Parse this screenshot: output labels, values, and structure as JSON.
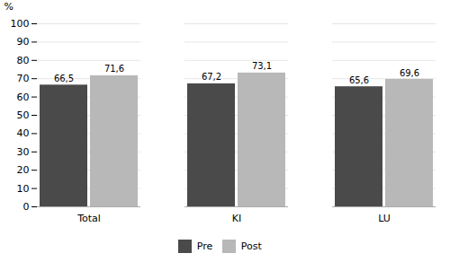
{
  "chart_data": {
    "type": "bar",
    "categories": [
      "Total",
      "KI",
      "LU"
    ],
    "series": [
      {
        "name": "Pre",
        "color": "#4a4a4a",
        "values": [
          66.5,
          67.2,
          65.6
        ],
        "value_labels": [
          "66,5",
          "67,2",
          "65,6"
        ]
      },
      {
        "name": "Post",
        "color": "#b8b8b8",
        "values": [
          71.6,
          73.1,
          69.6
        ],
        "value_labels": [
          "71,6",
          "73,1",
          "69,6"
        ]
      }
    ],
    "ylabel": "%",
    "ylim": [
      0,
      100
    ],
    "yticks": [
      0,
      10,
      20,
      30,
      40,
      50,
      60,
      70,
      80,
      90,
      100
    ],
    "grid": true,
    "data_labels": true,
    "legend": "bottom"
  }
}
